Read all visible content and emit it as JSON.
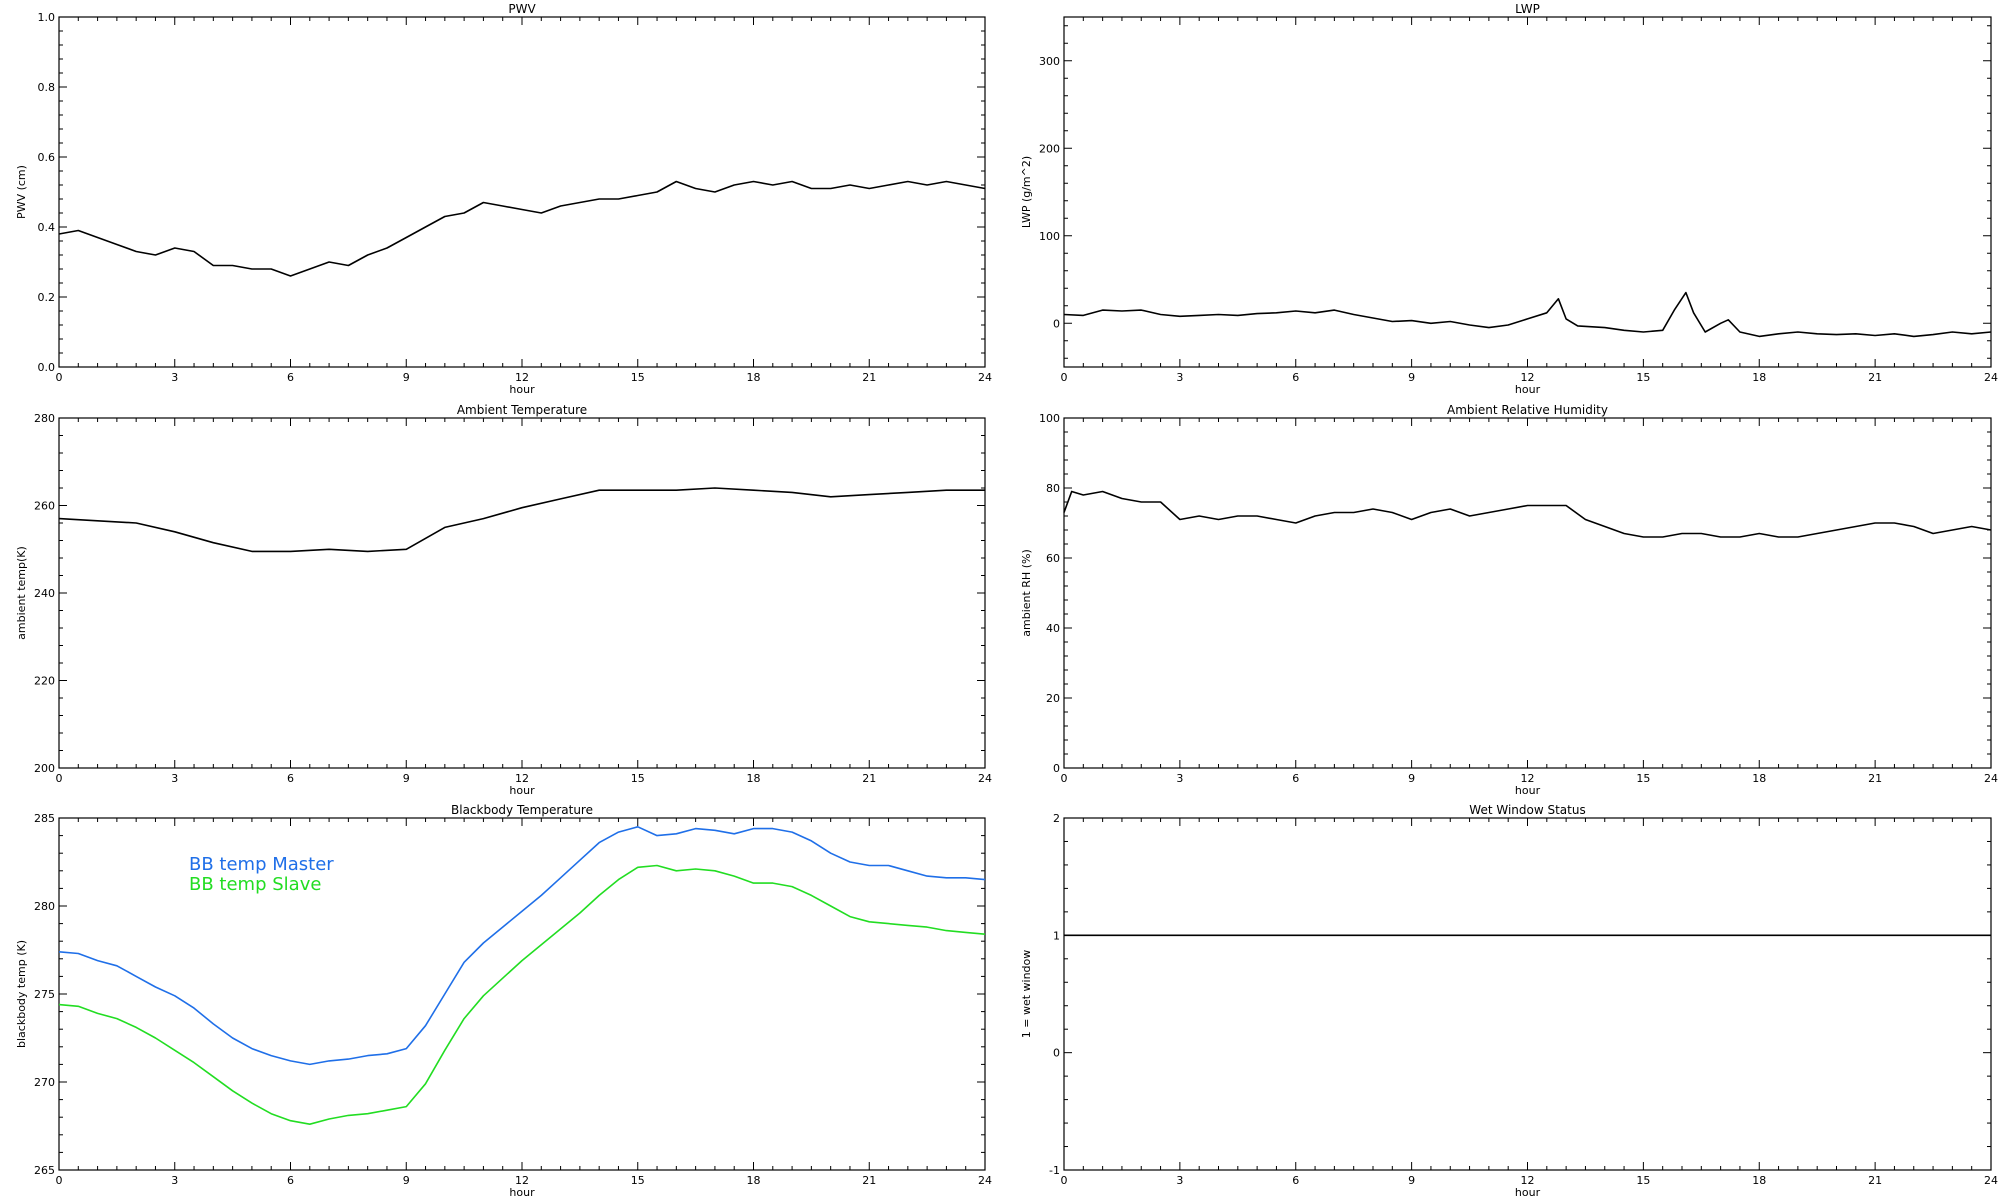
{
  "chart_data": [
    {
      "type": "line",
      "title": "PWV",
      "xlabel": "hour",
      "ylabel": "PWV (cm)",
      "xlim": [
        0,
        24
      ],
      "ylim": [
        0.0,
        1.0
      ],
      "xticks": [
        0,
        3,
        6,
        9,
        12,
        15,
        18,
        21,
        24
      ],
      "xtick_labels": [
        "0",
        "3",
        "6",
        "9",
        "12",
        "15",
        "18",
        "21",
        "24"
      ],
      "yticks": [
        0.0,
        0.2,
        0.4,
        0.6,
        0.8,
        1.0
      ],
      "ytick_labels": [
        "0.0",
        "0.2",
        "0.4",
        "0.6",
        "0.8",
        "1.0"
      ],
      "grid": false,
      "series": [
        {
          "color": "#000000",
          "x": [
            0,
            0.5,
            1,
            1.5,
            2,
            2.5,
            3,
            3.5,
            4,
            4.5,
            5,
            5.5,
            6,
            6.5,
            7,
            7.5,
            8,
            8.5,
            9,
            9.5,
            10,
            10.5,
            11,
            11.5,
            12,
            12.5,
            13,
            13.5,
            14,
            14.5,
            15,
            15.5,
            16,
            16.5,
            17,
            17.5,
            18,
            18.5,
            19,
            19.5,
            20,
            20.5,
            21,
            21.5,
            22,
            22.5,
            23,
            23.5,
            24
          ],
          "values": [
            0.38,
            0.39,
            0.37,
            0.35,
            0.33,
            0.32,
            0.34,
            0.33,
            0.29,
            0.29,
            0.28,
            0.28,
            0.26,
            0.28,
            0.3,
            0.29,
            0.32,
            0.34,
            0.37,
            0.4,
            0.43,
            0.44,
            0.47,
            0.46,
            0.45,
            0.44,
            0.46,
            0.47,
            0.48,
            0.48,
            0.49,
            0.5,
            0.53,
            0.51,
            0.5,
            0.52,
            0.53,
            0.52,
            0.53,
            0.51,
            0.51,
            0.52,
            0.51,
            0.52,
            0.53,
            0.52,
            0.53,
            0.52,
            0.51
          ]
        }
      ]
    },
    {
      "type": "line",
      "title": "LWP",
      "xlabel": "hour",
      "ylabel": "LWP (g/m^2)",
      "xlim": [
        0,
        24
      ],
      "ylim": [
        -50,
        350
      ],
      "xticks": [
        0,
        3,
        6,
        9,
        12,
        15,
        18,
        21,
        24
      ],
      "xtick_labels": [
        "0",
        "3",
        "6",
        "9",
        "12",
        "15",
        "18",
        "21",
        "24"
      ],
      "yticks": [
        0,
        100,
        200,
        300
      ],
      "ytick_labels": [
        "0",
        "100",
        "200",
        "300"
      ],
      "grid": false,
      "series": [
        {
          "color": "#000000",
          "x": [
            0,
            0.5,
            1,
            1.5,
            2,
            2.5,
            3,
            3.5,
            4,
            4.5,
            5,
            5.5,
            6,
            6.5,
            7,
            7.5,
            8,
            8.5,
            9,
            9.5,
            10,
            10.5,
            11,
            11.5,
            12,
            12.5,
            12.8,
            13.0,
            13.3,
            14,
            14.5,
            15,
            15.5,
            15.8,
            16.1,
            16.3,
            16.6,
            17,
            17.2,
            17.5,
            18,
            18.5,
            19,
            19.5,
            20,
            20.5,
            21,
            21.5,
            22,
            22.5,
            23,
            23.5,
            24
          ],
          "values": [
            10,
            9,
            15,
            14,
            15,
            10,
            8,
            9,
            10,
            9,
            11,
            12,
            14,
            12,
            15,
            10,
            6,
            2,
            3,
            0,
            2,
            -2,
            -5,
            -2,
            5,
            12,
            28,
            5,
            -3,
            -5,
            -8,
            -10,
            -8,
            15,
            35,
            12,
            -10,
            0,
            4,
            -10,
            -15,
            -12,
            -10,
            -12,
            -13,
            -12,
            -14,
            -12,
            -15,
            -13,
            -10,
            -12,
            -10
          ]
        }
      ]
    },
    {
      "type": "line",
      "title": "Ambient Temperature",
      "xlabel": "hour",
      "ylabel": "ambient temp(K)",
      "xlim": [
        0,
        24
      ],
      "ylim": [
        200,
        280
      ],
      "xticks": [
        0,
        3,
        6,
        9,
        12,
        15,
        18,
        21,
        24
      ],
      "xtick_labels": [
        "0",
        "3",
        "6",
        "9",
        "12",
        "15",
        "18",
        "21",
        "24"
      ],
      "yticks": [
        200,
        220,
        240,
        260,
        280
      ],
      "ytick_labels": [
        "200",
        "220",
        "240",
        "260",
        "280"
      ],
      "grid": false,
      "series": [
        {
          "color": "#000000",
          "x": [
            0,
            1,
            2,
            3,
            4,
            5,
            6,
            7,
            8,
            9,
            10,
            11,
            12,
            13,
            14,
            15,
            16,
            17,
            18,
            19,
            20,
            21,
            22,
            23,
            24
          ],
          "values": [
            257,
            256.5,
            256,
            254,
            251.5,
            249.5,
            249.5,
            250,
            249.5,
            250,
            255,
            257,
            259.5,
            261.5,
            263.5,
            263.5,
            263.5,
            264,
            263.5,
            263,
            262,
            262.5,
            263,
            263.5,
            263.5
          ]
        }
      ]
    },
    {
      "type": "line",
      "title": "Ambient Relative Humidity",
      "xlabel": "hour",
      "ylabel": "ambient RH (%)",
      "xlim": [
        0,
        24
      ],
      "ylim": [
        0,
        100
      ],
      "xticks": [
        0,
        3,
        6,
        9,
        12,
        15,
        18,
        21,
        24
      ],
      "xtick_labels": [
        "0",
        "3",
        "6",
        "9",
        "12",
        "15",
        "18",
        "21",
        "24"
      ],
      "yticks": [
        0,
        20,
        40,
        60,
        80,
        100
      ],
      "ytick_labels": [
        "0",
        "20",
        "40",
        "60",
        "80",
        "100"
      ],
      "grid": false,
      "series": [
        {
          "color": "#000000",
          "x": [
            0,
            0.2,
            0.5,
            1,
            1.5,
            2,
            2.5,
            3,
            3.5,
            4,
            4.5,
            5,
            5.5,
            6,
            6.5,
            7,
            7.5,
            8,
            8.5,
            9,
            9.5,
            10,
            10.5,
            11,
            11.5,
            12,
            12.5,
            13,
            13.5,
            14,
            14.5,
            15,
            15.5,
            16,
            16.5,
            17,
            17.5,
            18,
            18.5,
            19,
            19.5,
            20,
            20.5,
            21,
            21.5,
            22,
            22.5,
            23,
            23.5,
            24
          ],
          "values": [
            73,
            79,
            78,
            79,
            77,
            76,
            76,
            71,
            72,
            71,
            72,
            72,
            71,
            70,
            72,
            73,
            73,
            74,
            73,
            71,
            73,
            74,
            72,
            73,
            74,
            75,
            75,
            75,
            71,
            69,
            67,
            66,
            66,
            67,
            67,
            66,
            66,
            67,
            66,
            66,
            67,
            68,
            69,
            70,
            70,
            69,
            67,
            68,
            69,
            68
          ]
        }
      ]
    },
    {
      "type": "line",
      "title": "Blackbody Temperature",
      "xlabel": "hour",
      "ylabel": "blackbody temp (K)",
      "xlim": [
        0,
        24
      ],
      "ylim": [
        265,
        285
      ],
      "xticks": [
        0,
        3,
        6,
        9,
        12,
        15,
        18,
        21,
        24
      ],
      "xtick_labels": [
        "0",
        "3",
        "6",
        "9",
        "12",
        "15",
        "18",
        "21",
        "24"
      ],
      "yticks": [
        265,
        270,
        275,
        280,
        285
      ],
      "ytick_labels": [
        "265",
        "270",
        "275",
        "280",
        "285"
      ],
      "grid": false,
      "legend": "top-left",
      "series": [
        {
          "name": "BB temp Master",
          "color": "#1f6fe8",
          "x": [
            0,
            0.5,
            1,
            1.5,
            2,
            2.5,
            3,
            3.5,
            4,
            4.5,
            5,
            5.5,
            6,
            6.5,
            7,
            7.5,
            8,
            8.5,
            9,
            9.5,
            10,
            10.5,
            11,
            11.5,
            12,
            12.5,
            13,
            13.5,
            14,
            14.5,
            15,
            15.5,
            16,
            16.5,
            17,
            17.5,
            18,
            18.5,
            19,
            19.5,
            20,
            20.5,
            21,
            21.5,
            22,
            22.5,
            23,
            23.5,
            24
          ],
          "values": [
            277.4,
            277.3,
            276.9,
            276.6,
            276.0,
            275.4,
            274.9,
            274.2,
            273.3,
            272.5,
            271.9,
            271.5,
            271.2,
            271.0,
            271.2,
            271.3,
            271.5,
            271.6,
            271.9,
            273.2,
            275.0,
            276.8,
            277.9,
            278.8,
            279.7,
            280.6,
            281.6,
            282.6,
            283.6,
            284.2,
            284.5,
            284.0,
            284.1,
            284.4,
            284.3,
            284.1,
            284.4,
            284.4,
            284.2,
            283.7,
            283.0,
            282.5,
            282.3,
            282.3,
            282.0,
            281.7,
            281.6,
            281.6,
            281.5
          ]
        },
        {
          "name": "BB temp Slave",
          "color": "#22dd22",
          "x": [
            0,
            0.5,
            1,
            1.5,
            2,
            2.5,
            3,
            3.5,
            4,
            4.5,
            5,
            5.5,
            6,
            6.5,
            7,
            7.5,
            8,
            8.5,
            9,
            9.5,
            10,
            10.5,
            11,
            11.5,
            12,
            12.5,
            13,
            13.5,
            14,
            14.5,
            15,
            15.5,
            16,
            16.5,
            17,
            17.5,
            18,
            18.5,
            19,
            19.5,
            20,
            20.5,
            21,
            21.5,
            22,
            22.5,
            23,
            23.5,
            24
          ],
          "values": [
            274.4,
            274.3,
            273.9,
            273.6,
            273.1,
            272.5,
            271.8,
            271.1,
            270.3,
            269.5,
            268.8,
            268.2,
            267.8,
            267.6,
            267.9,
            268.1,
            268.2,
            268.4,
            268.6,
            269.9,
            271.8,
            273.6,
            274.9,
            275.9,
            276.9,
            277.8,
            278.7,
            279.6,
            280.6,
            281.5,
            282.2,
            282.3,
            282.0,
            282.1,
            282.0,
            281.7,
            281.3,
            281.3,
            281.1,
            280.6,
            280.0,
            279.4,
            279.1,
            279.0,
            278.9,
            278.8,
            278.6,
            278.5,
            278.4
          ]
        }
      ]
    },
    {
      "type": "line",
      "title": "Wet Window Status",
      "xlabel": "hour",
      "ylabel": "1 = wet window",
      "xlim": [
        0,
        24
      ],
      "ylim": [
        -1,
        2
      ],
      "xticks": [
        0,
        3,
        6,
        9,
        12,
        15,
        18,
        21,
        24
      ],
      "xtick_labels": [
        "0",
        "3",
        "6",
        "9",
        "12",
        "15",
        "18",
        "21",
        "24"
      ],
      "yticks": [
        -1,
        0,
        1,
        2
      ],
      "ytick_labels": [
        "-1",
        "0",
        "1",
        "2"
      ],
      "grid": false,
      "series": [
        {
          "color": "#000000",
          "x": [
            0,
            24
          ],
          "values": [
            1,
            1
          ]
        }
      ]
    }
  ]
}
